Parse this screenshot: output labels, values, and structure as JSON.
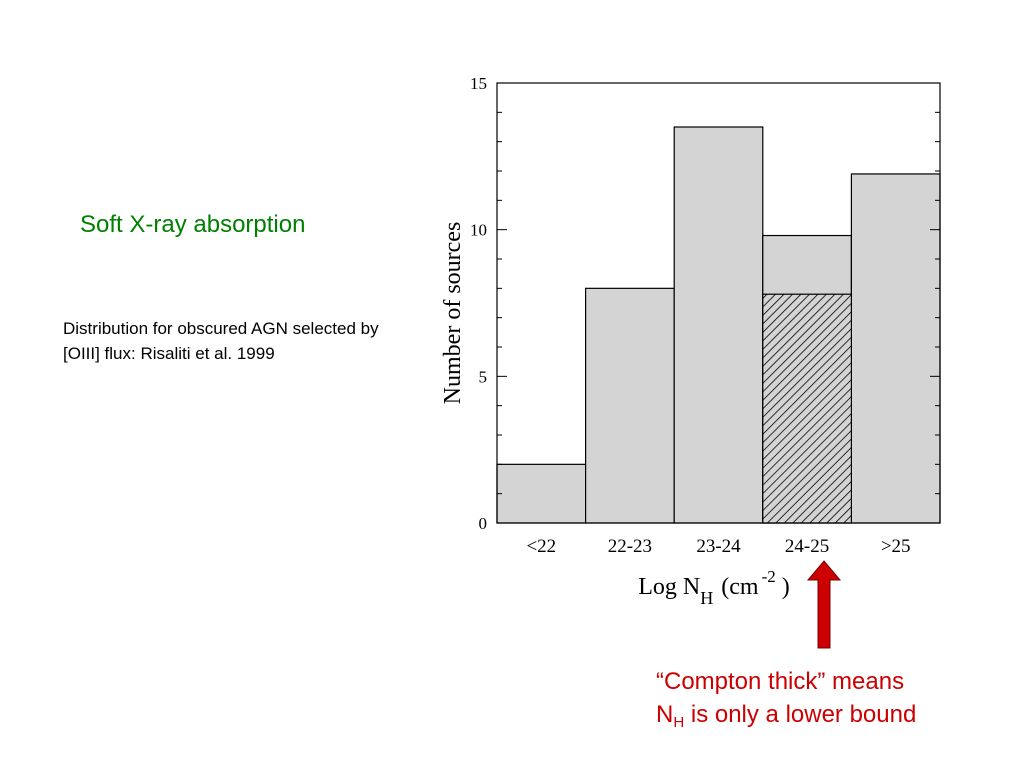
{
  "slide": {
    "title": "Soft X-ray absorption",
    "body": "Distribution for obscured AGN selected by [OIII] flux: Risaliti et al. 1999"
  },
  "chart_data": {
    "type": "bar",
    "categories": [
      "<22",
      "22-23",
      "23-24",
      "24-25",
      ">25"
    ],
    "series": [
      {
        "values": [
          2,
          8,
          13.5,
          9.8,
          11.9
        ]
      },
      {
        "values": [
          0,
          0,
          0,
          7.8,
          0
        ]
      }
    ],
    "ylabel": "Number of sources",
    "xlabel": {
      "prefix": "Log N",
      "subscript": "H",
      "unit_open": "(cm",
      "superscript": "-2",
      "unit_close": ")"
    },
    "ylim": [
      0,
      15
    ],
    "yticks": [
      "0",
      "5",
      "10",
      "15"
    ],
    "grid": false,
    "legend": "none"
  },
  "annotation": {
    "line1": "“Compton thick” means",
    "line2_prefix": "N",
    "line2_sub": "H",
    "line2_suffix": " is only a lower bound"
  },
  "colors": {
    "bar_fill": "#d4d4d4",
    "hatch": "#000000",
    "arrow": "#cc0000",
    "arrow_edge": "#7a0000",
    "title": "#008000",
    "annotation": "#cc0000"
  }
}
